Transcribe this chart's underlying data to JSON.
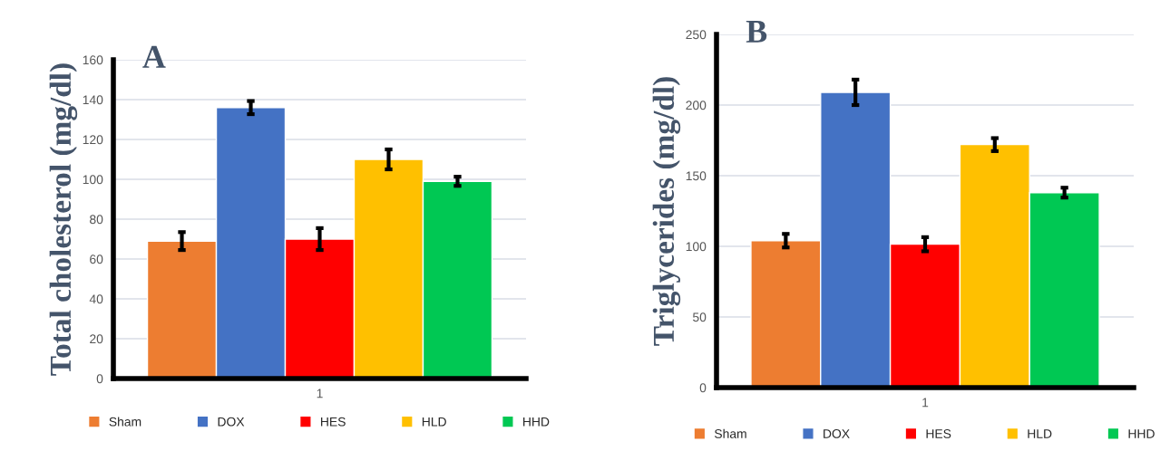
{
  "chart_data": [
    {
      "type": "bar",
      "title": "A",
      "ylabel": "Total cholesterol (mg/dl)",
      "categories": [
        "1"
      ],
      "ylim": [
        0,
        160
      ],
      "yticks": [
        0,
        20,
        40,
        60,
        80,
        100,
        120,
        140,
        160
      ],
      "grid": "y",
      "legend": "bottom",
      "series": [
        {
          "name": "Sham",
          "color": "#ed7d31",
          "values": [
            69
          ],
          "errors": [
            4.5
          ]
        },
        {
          "name": "DOX",
          "color": "#4472c4",
          "values": [
            136
          ],
          "errors": [
            3.3
          ]
        },
        {
          "name": "HES",
          "color": "#ff0000",
          "values": [
            70
          ],
          "errors": [
            5.5
          ]
        },
        {
          "name": "HLD",
          "color": "#ffc000",
          "values": [
            110
          ],
          "errors": [
            5
          ]
        },
        {
          "name": "HHD",
          "color": "#00c853",
          "values": [
            99
          ],
          "errors": [
            2.3
          ]
        }
      ]
    },
    {
      "type": "bar",
      "title": "B",
      "ylabel": "Triglycerides (mg/dl)",
      "categories": [
        "1"
      ],
      "ylim": [
        0,
        250
      ],
      "yticks": [
        0,
        50,
        100,
        150,
        200,
        250
      ],
      "grid": "y",
      "legend": "bottom",
      "series": [
        {
          "name": "Sham",
          "color": "#ed7d31",
          "values": [
            104
          ],
          "errors": [
            4.8
          ]
        },
        {
          "name": "DOX",
          "color": "#4472c4",
          "values": [
            209
          ],
          "errors": [
            9
          ]
        },
        {
          "name": "HES",
          "color": "#ff0000",
          "values": [
            101.5
          ],
          "errors": [
            5
          ]
        },
        {
          "name": "HLD",
          "color": "#ffc000",
          "values": [
            172
          ],
          "errors": [
            4.6
          ]
        },
        {
          "name": "HHD",
          "color": "#00c853",
          "values": [
            138
          ],
          "errors": [
            3.5
          ]
        }
      ]
    }
  ]
}
